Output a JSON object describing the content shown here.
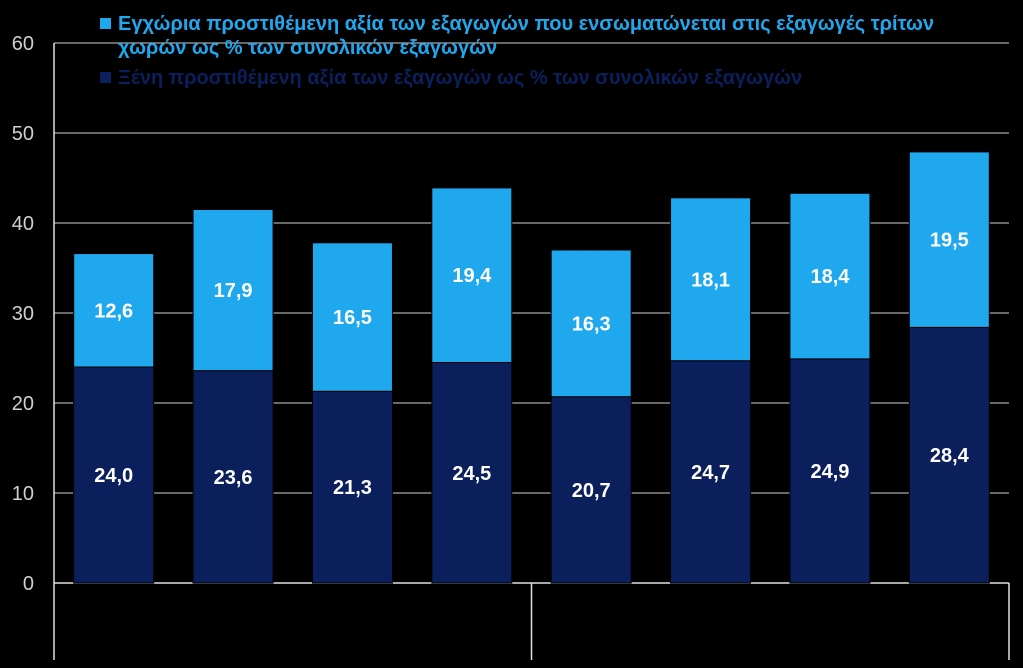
{
  "chart_data": {
    "type": "bar",
    "stacked": true,
    "categories": [
      "",
      "",
      "",
      "",
      "",
      "",
      "",
      ""
    ],
    "series": [
      {
        "name": "Ξένη προστιθέμενη αξία των εξαγωγών ως % των συνολικών εξαγωγών",
        "color": "#0a1f5c",
        "values": [
          24.0,
          23.6,
          21.3,
          24.5,
          20.7,
          24.7,
          24.9,
          28.4
        ],
        "labels": [
          "24,0",
          "23,6",
          "21,3",
          "24,5",
          "20,7",
          "24,7",
          "24,9",
          "28,4"
        ]
      },
      {
        "name": "Εγχώρια προστιθέμενη αξία των εξαγωγών που ενσωματώνεται στις εξαγωγές τρίτων χωρών ως % των συνολικών εξαγωγών",
        "color": "#1fa8ee",
        "values": [
          12.6,
          17.9,
          16.5,
          19.4,
          16.3,
          18.1,
          18.4,
          19.5
        ],
        "labels": [
          "12,6",
          "17,9",
          "16,5",
          "19,4",
          "16,3",
          "18,1",
          "18,4",
          "19,5"
        ]
      }
    ],
    "ylim": [
      0,
      60
    ],
    "yticks": [
      "0",
      "10",
      "20",
      "30",
      "40",
      "50",
      "60"
    ],
    "grid": true,
    "legend_position": "top"
  }
}
